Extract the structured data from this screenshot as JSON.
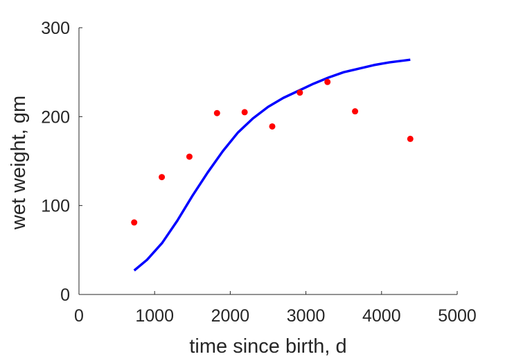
{
  "chart_data": {
    "type": "scatter",
    "title": "",
    "xlabel": "time since birth, d",
    "ylabel": "wet weight, gm",
    "xlim": [
      0,
      5000
    ],
    "ylim": [
      0,
      300
    ],
    "xticks": [
      0,
      1000,
      2000,
      3000,
      4000,
      5000
    ],
    "yticks": [
      0,
      100,
      200,
      300
    ],
    "xtick_labels": [
      "0",
      "1000",
      "2000",
      "3000",
      "4000",
      "5000"
    ],
    "ytick_labels": [
      "0",
      "100",
      "200",
      "300"
    ],
    "grid": false,
    "legend": "none",
    "series": [
      {
        "type": "scatter",
        "color": "#ff0000",
        "x": [
          730,
          1095,
          1460,
          1825,
          2190,
          2555,
          2920,
          3285,
          3650,
          4380
        ],
        "y": [
          81,
          132,
          155,
          204,
          205,
          189,
          227,
          239,
          206,
          175
        ]
      },
      {
        "type": "line",
        "color": "#0000ff",
        "x": [
          730,
          900,
          1100,
          1300,
          1500,
          1700,
          1900,
          2100,
          2300,
          2500,
          2700,
          2900,
          3100,
          3300,
          3500,
          3700,
          3900,
          4100,
          4380
        ],
        "y": [
          27,
          39,
          58,
          83,
          111,
          137,
          161,
          182,
          198,
          211,
          221,
          229,
          237,
          244,
          250,
          254,
          258,
          261,
          264
        ]
      }
    ]
  }
}
